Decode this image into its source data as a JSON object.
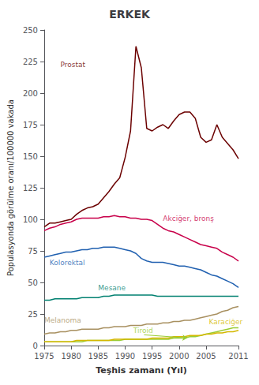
{
  "chart_data": {
    "type": "line",
    "title": "ERKEK",
    "xlabel": "Teşhis zamanı (Yıl)",
    "ylabel": "Populasyonda görülme oranı/100000 vakada",
    "xlim": [
      1975,
      2011
    ],
    "ylim": [
      0,
      250
    ],
    "xticks": [
      1975,
      1980,
      1985,
      1990,
      1995,
      2000,
      2005,
      2011
    ],
    "yticks": [
      0,
      25,
      50,
      75,
      100,
      125,
      150,
      175,
      200,
      225,
      250
    ],
    "grid": false,
    "x": [
      1975,
      1976,
      1977,
      1978,
      1979,
      1980,
      1981,
      1982,
      1983,
      1984,
      1985,
      1986,
      1987,
      1988,
      1989,
      1990,
      1991,
      1992,
      1993,
      1994,
      1995,
      1996,
      1997,
      1998,
      1999,
      2000,
      2001,
      2002,
      2003,
      2004,
      2005,
      2006,
      2007,
      2008,
      2009,
      2010,
      2011
    ],
    "series": [
      {
        "name": "Prostat",
        "color": "#6B0000",
        "values": [
          94,
          97,
          97,
          98,
          99,
          100,
          104,
          107,
          109,
          110,
          112,
          117,
          122,
          128,
          133,
          149,
          170,
          237,
          220,
          172,
          170,
          173,
          175,
          172,
          178,
          183,
          185,
          185,
          180,
          165,
          161,
          163,
          175,
          165,
          160,
          155,
          148
        ]
      },
      {
        "name": "Akciğer, bronş",
        "color": "#c8004a",
        "values": [
          91,
          93,
          94,
          96,
          97,
          98,
          100,
          101,
          101,
          101,
          101,
          102,
          102,
          103,
          102,
          102,
          101,
          101,
          100,
          100,
          99,
          96,
          93,
          91,
          90,
          88,
          86,
          84,
          82,
          80,
          79,
          78,
          77,
          74,
          72,
          70,
          67
        ]
      },
      {
        "name": "Kolorektal",
        "color": "#2060b0",
        "values": [
          70,
          71,
          72,
          73,
          74,
          74,
          75,
          76,
          76,
          77,
          77,
          78,
          78,
          78,
          77,
          76,
          75,
          73,
          69,
          67,
          66,
          66,
          66,
          65,
          64,
          63,
          63,
          62,
          61,
          60,
          58,
          56,
          55,
          53,
          51,
          49,
          46
        ]
      },
      {
        "name": "Mesane",
        "color": "#008070",
        "values": [
          36,
          36,
          37,
          37,
          37,
          37,
          37,
          38,
          38,
          38,
          38,
          39,
          39,
          40,
          40,
          40,
          40,
          40,
          40,
          40,
          40,
          39,
          39,
          39,
          39,
          39,
          39,
          39,
          39,
          39,
          39,
          39,
          39,
          39,
          39,
          39,
          39
        ]
      },
      {
        "name": "Melanoma",
        "color": "#a89060",
        "values": [
          9,
          10,
          10,
          11,
          11,
          12,
          12,
          13,
          13,
          13,
          13,
          14,
          14,
          15,
          15,
          15,
          16,
          16,
          16,
          17,
          17,
          17,
          18,
          18,
          19,
          19,
          20,
          20,
          21,
          22,
          23,
          24,
          25,
          27,
          28,
          30,
          31
        ]
      },
      {
        "name": "Tiroid",
        "color": "#99cc33",
        "values": [
          3,
          3,
          3,
          3,
          3,
          3,
          3,
          3,
          4,
          4,
          4,
          4,
          4,
          4,
          4,
          5,
          5,
          5,
          5,
          5,
          5,
          5,
          5,
          5,
          6,
          6,
          6,
          7,
          7,
          8,
          9,
          10,
          11,
          12,
          13,
          14,
          14
        ]
      },
      {
        "name": "Karaciğer",
        "color": "#d4b800",
        "values": [
          3,
          3,
          3,
          3,
          3,
          3,
          4,
          4,
          4,
          4,
          4,
          4,
          4,
          5,
          5,
          5,
          5,
          5,
          5,
          5,
          6,
          6,
          6,
          6,
          7,
          7,
          7,
          8,
          8,
          8,
          9,
          9,
          10,
          10,
          11,
          11,
          12
        ]
      }
    ],
    "annotations": [
      {
        "text": "Prostat",
        "x": 1978,
        "y": 220,
        "color": "#6B0000"
      },
      {
        "text": "Akciğer, bronş",
        "x": 1997,
        "y": 98,
        "color": "#c8004a"
      },
      {
        "text": "Kolorektal",
        "x": 1976,
        "y": 63,
        "color": "#2060b0"
      },
      {
        "text": "Mesane",
        "x": 1985,
        "y": 43,
        "color": "#008070"
      },
      {
        "text": "Melanoma",
        "x": 1975,
        "y": 17,
        "color": "#a89060"
      },
      {
        "text": "Tiroid",
        "x": 1991.5,
        "y": 9,
        "color": "#99cc33",
        "arrow": {
          "from": [
            1993.5,
            8.5
          ],
          "to": [
            2001.5,
            6
          ]
        }
      },
      {
        "text": "Karaciğer",
        "x": 2005.5,
        "y": 16,
        "color": "#d4b800"
      }
    ]
  }
}
